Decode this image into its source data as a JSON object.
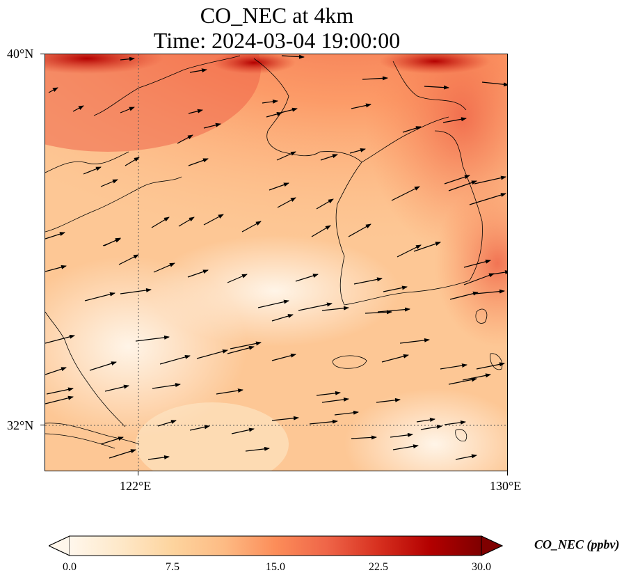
{
  "title": {
    "line1": "CO_NEC at 4km",
    "line2": "Time: 2024-03-04 19:00:00"
  },
  "map": {
    "variable": "CO_NEC",
    "units": "ppbv",
    "projection": "lat-lon",
    "lon_range": [
      119,
      130
    ],
    "lat_range": [
      30.9,
      40
    ],
    "gridlines_lon": [
      122
    ],
    "gridlines_lat": [
      32
    ],
    "colormap": "OrRd",
    "colormap_stops": [
      "#fff7ec",
      "#fee8c8",
      "#fdd49e",
      "#fdbb84",
      "#fc8d59",
      "#ef6548",
      "#d7301f",
      "#b30000",
      "#7f0000"
    ],
    "coastline_color": "#000000",
    "wind_arrow_color": "#000000",
    "gridline_color": "#555555"
  },
  "axes": {
    "y_ticks": [
      {
        "label": "40°N",
        "value": 40
      },
      {
        "label": "32°N",
        "value": 32
      }
    ],
    "x_ticks": [
      {
        "label": "122°E",
        "value": 122
      },
      {
        "label": "130°E",
        "value": 130
      }
    ]
  },
  "colorbar": {
    "label": "CO_NEC (ppbv)",
    "min": 0,
    "max": 30,
    "extend": "both",
    "tick_labels": [
      "0.0",
      "7.5",
      "15.0",
      "22.5",
      "30.0"
    ]
  },
  "chart_data": {
    "type": "heatmap",
    "title": "CO_NEC at 4km\nTime: 2024-03-04 19:00:00",
    "xlabel": "",
    "ylabel": "",
    "x_ticks": [
      "122°E",
      "130°E"
    ],
    "y_ticks": [
      "40°N",
      "32°N"
    ],
    "xlim": [
      119,
      130
    ],
    "ylim": [
      30.9,
      40
    ],
    "colorbar_label": "CO_NEC (ppbv)",
    "colorbar_range": [
      0,
      30
    ],
    "colorbar_ticks": [
      0,
      7.5,
      15,
      22.5,
      30
    ],
    "grid": true
  }
}
